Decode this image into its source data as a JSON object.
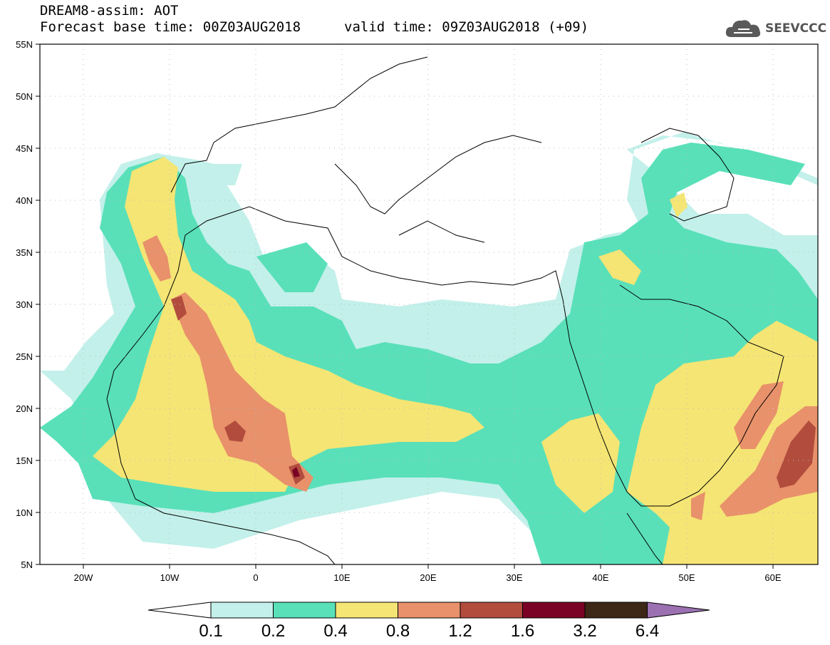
{
  "header": {
    "model_line": "DREAM8-assim: AOT",
    "base_time_line": "Forecast base time: 00Z03AUG2018",
    "valid_time_line": "valid time: 09Z03AUG2018 (+09)"
  },
  "logo": {
    "text": "SEEVCCC",
    "icon": "cloud-icon"
  },
  "map": {
    "lat_labels": [
      "55N",
      "50N",
      "45N",
      "40N",
      "35N",
      "30N",
      "25N",
      "20N",
      "15N",
      "10N",
      "5N"
    ],
    "lon_labels": [
      "20W",
      "10W",
      "0",
      "10E",
      "20E",
      "30E",
      "40E",
      "50E",
      "60E"
    ],
    "lat_range": [
      5,
      55
    ],
    "lon_range": [
      -25,
      65
    ],
    "grid": "dotted"
  },
  "colorbar": {
    "levels": [
      "0.1",
      "0.2",
      "0.4",
      "0.8",
      "1.2",
      "1.6",
      "3.2",
      "6.4"
    ],
    "colors": [
      "#ffffff",
      "#c3f0ea",
      "#59e0b9",
      "#f5e574",
      "#e8916a",
      "#b24d3e",
      "#7a0325",
      "#3d2716",
      "#9b71b2"
    ]
  }
}
